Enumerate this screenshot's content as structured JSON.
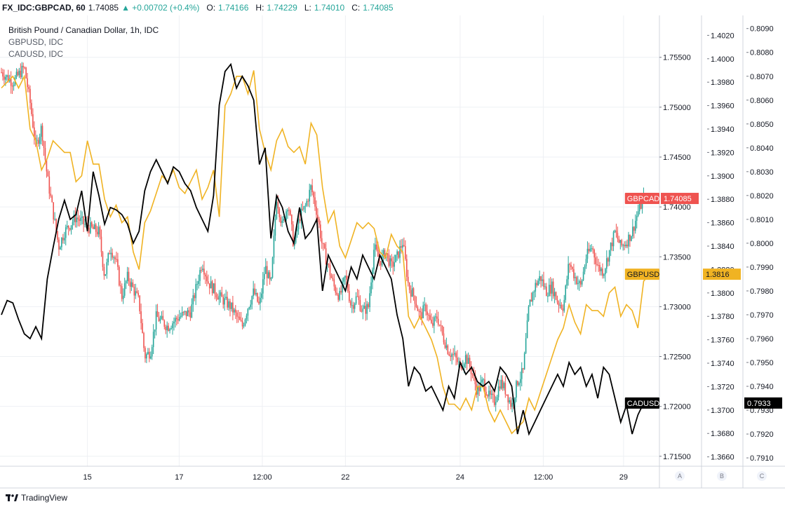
{
  "header": {
    "symbol": "FX_IDC:GBPCAD, 60",
    "last": "1.74085",
    "change": "▲ +0.00702 (+0.4%)",
    "o_label": "O:",
    "o_value": "1.74166",
    "h_label": "H:",
    "h_value": "1.74229",
    "l_label": "L:",
    "l_value": "1.74010",
    "c_label": "C:",
    "c_value": "1.74085"
  },
  "legend": {
    "main": "British Pound / Canadian Dollar, 1h, IDC",
    "s2": "GBPUSD, IDC",
    "s3": "CADUSD, IDC"
  },
  "footer": {
    "brand": "TradingView"
  },
  "axis_buttons": [
    "A",
    "B",
    "C"
  ],
  "chart_data": {
    "type": "line",
    "colors": {
      "up": "#26a69a",
      "down": "#ef5350",
      "gbpusd": "#f0b323",
      "cadusd": "#000000",
      "grid": "#eef0f4"
    },
    "x_ticks": [
      {
        "t": 15,
        "label": "15"
      },
      {
        "t": 31,
        "label": "17"
      },
      {
        "t": 45.5,
        "label": "12:00"
      },
      {
        "t": 60,
        "label": "22"
      },
      {
        "t": 80,
        "label": "24"
      },
      {
        "t": 94.5,
        "label": "12:00"
      },
      {
        "t": 108.5,
        "label": "29"
      }
    ],
    "axes": {
      "A": {
        "ylim": [
          1.714,
          1.7592
        ],
        "ticks": [
          "1.71500",
          "1.72000",
          "1.72500",
          "1.73000",
          "1.73500",
          "1.74000",
          "1.74500",
          "1.75000",
          "1.75500"
        ]
      },
      "B": {
        "ylim": [
          1.3652,
          1.4037
        ],
        "ticks": [
          "1.3660",
          "1.3680",
          "1.3700",
          "1.3720",
          "1.3740",
          "1.3760",
          "1.3780",
          "1.3800",
          "1.3820",
          "1.3840",
          "1.3860",
          "1.3880",
          "1.3900",
          "1.3920",
          "1.3940",
          "1.3960",
          "1.3980",
          "1.4000",
          "1.4020"
        ]
      },
      "C": {
        "ylim": [
          0.79065,
          0.80955
        ],
        "ticks": [
          "0.7910",
          "0.7920",
          "0.7930",
          "0.7940",
          "0.7950",
          "0.7960",
          "0.7970",
          "0.7980",
          "0.7990",
          "0.8000",
          "0.8010",
          "0.8020",
          "0.8030",
          "0.8040",
          "0.8050",
          "0.8060",
          "0.8070",
          "0.8080",
          "0.8090"
        ]
      }
    },
    "gbpcad": [
      [
        0,
        1.7535
      ],
      [
        2,
        1.7525
      ],
      [
        4,
        1.754
      ],
      [
        5,
        1.7505
      ],
      [
        6,
        1.746
      ],
      [
        7,
        1.748
      ],
      [
        8,
        1.743
      ],
      [
        9,
        1.7395
      ],
      [
        10,
        1.736
      ],
      [
        11,
        1.7375
      ],
      [
        13,
        1.739
      ],
      [
        15,
        1.738
      ],
      [
        17,
        1.7375
      ],
      [
        18,
        1.733
      ],
      [
        19,
        1.736
      ],
      [
        20,
        1.7345
      ],
      [
        21,
        1.731
      ],
      [
        22,
        1.733
      ],
      [
        24,
        1.7305
      ],
      [
        25,
        1.725
      ],
      [
        26,
        1.7255
      ],
      [
        27,
        1.729
      ],
      [
        29,
        1.728
      ],
      [
        31,
        1.729
      ],
      [
        33,
        1.7295
      ],
      [
        34,
        1.732
      ],
      [
        35,
        1.7345
      ],
      [
        36,
        1.7325
      ],
      [
        38,
        1.731
      ],
      [
        40,
        1.73
      ],
      [
        42,
        1.728
      ],
      [
        43,
        1.73
      ],
      [
        44,
        1.7315
      ],
      [
        45,
        1.73
      ],
      [
        46,
        1.734
      ],
      [
        47,
        1.732
      ],
      [
        48,
        1.741
      ],
      [
        49,
        1.738
      ],
      [
        50,
        1.7405
      ],
      [
        51,
        1.736
      ],
      [
        52,
        1.739
      ],
      [
        53,
        1.74
      ],
      [
        54,
        1.742
      ],
      [
        55,
        1.7395
      ],
      [
        56,
        1.736
      ],
      [
        57,
        1.734
      ],
      [
        58,
        1.732
      ],
      [
        59,
        1.731
      ],
      [
        60,
        1.733
      ],
      [
        61,
        1.73
      ],
      [
        62,
        1.731
      ],
      [
        63,
        1.7295
      ],
      [
        64,
        1.73
      ],
      [
        65,
        1.736
      ],
      [
        66,
        1.7345
      ],
      [
        67,
        1.7355
      ],
      [
        68,
        1.734
      ],
      [
        69,
        1.735
      ],
      [
        70,
        1.7365
      ],
      [
        71,
        1.732
      ],
      [
        72,
        1.731
      ],
      [
        73,
        1.729
      ],
      [
        74,
        1.73
      ],
      [
        75,
        1.728
      ],
      [
        76,
        1.729
      ],
      [
        77,
        1.727
      ],
      [
        78,
        1.7255
      ],
      [
        79,
        1.725
      ],
      [
        80,
        1.724
      ],
      [
        81,
        1.725
      ],
      [
        82,
        1.7235
      ],
      [
        83,
        1.7215
      ],
      [
        84,
        1.7225
      ],
      [
        85,
        1.721
      ],
      [
        86,
        1.7205
      ],
      [
        87,
        1.7225
      ],
      [
        88,
        1.7215
      ],
      [
        89,
        1.72
      ],
      [
        90,
        1.7225
      ],
      [
        91,
        1.7235
      ],
      [
        92,
        1.73
      ],
      [
        93,
        1.732
      ],
      [
        94,
        1.733
      ],
      [
        95,
        1.7315
      ],
      [
        96,
        1.732
      ],
      [
        97,
        1.7305
      ],
      [
        98,
        1.73
      ],
      [
        99,
        1.7345
      ],
      [
        100,
        1.733
      ],
      [
        101,
        1.732
      ],
      [
        102,
        1.735
      ],
      [
        103,
        1.736
      ],
      [
        104,
        1.734
      ],
      [
        105,
        1.7335
      ],
      [
        106,
        1.7355
      ],
      [
        107,
        1.7375
      ],
      [
        108,
        1.736
      ],
      [
        109,
        1.7365
      ],
      [
        110,
        1.7375
      ],
      [
        111,
        1.7395
      ],
      [
        112,
        1.7408
      ]
    ],
    "gbpusd": [
      [
        0,
        1.3975
      ],
      [
        2,
        1.3985
      ],
      [
        3,
        1.3975
      ],
      [
        4,
        1.3985
      ],
      [
        5,
        1.394
      ],
      [
        6,
        1.393
      ],
      [
        7,
        1.3905
      ],
      [
        8,
        1.3915
      ],
      [
        9,
        1.393
      ],
      [
        11,
        1.392
      ],
      [
        12,
        1.392
      ],
      [
        13,
        1.3895
      ],
      [
        14,
        1.39
      ],
      [
        15,
        1.393
      ],
      [
        16,
        1.391
      ],
      [
        17,
        1.391
      ],
      [
        18,
        1.388
      ],
      [
        19,
        1.3865
      ],
      [
        20,
        1.3875
      ],
      [
        21,
        1.386
      ],
      [
        22,
        1.3865
      ],
      [
        23,
        1.3835
      ],
      [
        24,
        1.382
      ],
      [
        25,
        1.386
      ],
      [
        26,
        1.387
      ],
      [
        27,
        1.3885
      ],
      [
        28,
        1.39
      ],
      [
        29,
        1.3895
      ],
      [
        30,
        1.3905
      ],
      [
        31,
        1.389
      ],
      [
        32,
        1.3885
      ],
      [
        33,
        1.3895
      ],
      [
        34,
        1.3905
      ],
      [
        35,
        1.388
      ],
      [
        36,
        1.389
      ],
      [
        37,
        1.3905
      ],
      [
        38,
        1.3865
      ],
      [
        39,
        1.396
      ],
      [
        40,
        1.397
      ],
      [
        41,
        1.3985
      ],
      [
        42,
        1.3985
      ],
      [
        43,
        1.397
      ],
      [
        44,
        1.399
      ],
      [
        45,
        1.394
      ],
      [
        46,
        1.392
      ],
      [
        47,
        1.3905
      ],
      [
        48,
        1.393
      ],
      [
        49,
        1.394
      ],
      [
        50,
        1.3925
      ],
      [
        51,
        1.392
      ],
      [
        52,
        1.3925
      ],
      [
        53,
        1.391
      ],
      [
        54,
        1.3945
      ],
      [
        55,
        1.3935
      ],
      [
        56,
        1.389
      ],
      [
        57,
        1.386
      ],
      [
        58,
        1.387
      ],
      [
        59,
        1.384
      ],
      [
        60,
        1.383
      ],
      [
        61,
        1.3845
      ],
      [
        62,
        1.386
      ],
      [
        63,
        1.3855
      ],
      [
        64,
        1.386
      ],
      [
        65,
        1.3855
      ],
      [
        66,
        1.3835
      ],
      [
        67,
        1.383
      ],
      [
        68,
        1.385
      ],
      [
        69,
        1.384
      ],
      [
        70,
        1.3835
      ],
      [
        71,
        1.378
      ],
      [
        72,
        1.377
      ],
      [
        73,
        1.378
      ],
      [
        74,
        1.377
      ],
      [
        75,
        1.376
      ],
      [
        76,
        1.3745
      ],
      [
        77,
        1.372
      ],
      [
        78,
        1.3705
      ],
      [
        79,
        1.3705
      ],
      [
        80,
        1.37
      ],
      [
        81,
        1.371
      ],
      [
        82,
        1.37
      ],
      [
        83,
        1.372
      ],
      [
        84,
        1.372
      ],
      [
        85,
        1.37
      ],
      [
        86,
        1.369
      ],
      [
        87,
        1.37
      ],
      [
        88,
        1.369
      ],
      [
        89,
        1.368
      ],
      [
        90,
        1.3685
      ],
      [
        91,
        1.369
      ],
      [
        92,
        1.371
      ],
      [
        93,
        1.37
      ],
      [
        94,
        1.3715
      ],
      [
        95,
        1.373
      ],
      [
        96,
        1.3745
      ],
      [
        97,
        1.376
      ],
      [
        98,
        1.377
      ],
      [
        99,
        1.379
      ],
      [
        100,
        1.3775
      ],
      [
        101,
        1.3765
      ],
      [
        102,
        1.379
      ],
      [
        103,
        1.3785
      ],
      [
        104,
        1.3785
      ],
      [
        105,
        1.378
      ],
      [
        106,
        1.38
      ],
      [
        107,
        1.3805
      ],
      [
        108,
        1.378
      ],
      [
        109,
        1.379
      ],
      [
        110,
        1.3785
      ],
      [
        111,
        1.377
      ],
      [
        112,
        1.381
      ],
      [
        113,
        1.3816
      ]
    ],
    "cadusd": [
      [
        0,
        0.797
      ],
      [
        1,
        0.7976
      ],
      [
        2,
        0.7975
      ],
      [
        3,
        0.7968
      ],
      [
        4,
        0.7962
      ],
      [
        5,
        0.796
      ],
      [
        6,
        0.7965
      ],
      [
        7,
        0.796
      ],
      [
        8,
        0.7985
      ],
      [
        9,
        0.7998
      ],
      [
        10,
        0.801
      ],
      [
        11,
        0.8018
      ],
      [
        12,
        0.801
      ],
      [
        13,
        0.8012
      ],
      [
        14,
        0.8022
      ],
      [
        15,
        0.8005
      ],
      [
        16,
        0.803
      ],
      [
        17,
        0.802
      ],
      [
        18,
        0.8008
      ],
      [
        19,
        0.8015
      ],
      [
        20,
        0.8014
      ],
      [
        21,
        0.8012
      ],
      [
        22,
        0.8008
      ],
      [
        23,
        0.8
      ],
      [
        24,
        0.8005
      ],
      [
        25,
        0.8022
      ],
      [
        26,
        0.803
      ],
      [
        27,
        0.8035
      ],
      [
        28,
        0.803
      ],
      [
        29,
        0.8025
      ],
      [
        30,
        0.8032
      ],
      [
        31,
        0.803
      ],
      [
        32,
        0.8025
      ],
      [
        33,
        0.8022
      ],
      [
        34,
        0.8015
      ],
      [
        35,
        0.801
      ],
      [
        36,
        0.8005
      ],
      [
        37,
        0.802
      ],
      [
        38,
        0.8058
      ],
      [
        39,
        0.8072
      ],
      [
        40,
        0.8075
      ],
      [
        41,
        0.8065
      ],
      [
        42,
        0.807
      ],
      [
        43,
        0.8066
      ],
      [
        44,
        0.806
      ],
      [
        45,
        0.8033
      ],
      [
        46,
        0.804
      ],
      [
        47,
        0.8002
      ],
      [
        48,
        0.802
      ],
      [
        49,
        0.8015
      ],
      [
        50,
        0.8005
      ],
      [
        51,
        0.8
      ],
      [
        52,
        0.8015
      ],
      [
        53,
        0.8002
      ],
      [
        54,
        0.8005
      ],
      [
        55,
        0.801
      ],
      [
        56,
        0.798
      ],
      [
        57,
        0.7995
      ],
      [
        58,
        0.799
      ],
      [
        59,
        0.7985
      ],
      [
        60,
        0.798
      ],
      [
        61,
        0.799
      ],
      [
        62,
        0.7985
      ],
      [
        63,
        0.7995
      ],
      [
        64,
        0.799
      ],
      [
        65,
        0.7985
      ],
      [
        66,
        0.7995
      ],
      [
        67,
        0.799
      ],
      [
        68,
        0.7985
      ],
      [
        69,
        0.797
      ],
      [
        70,
        0.796
      ],
      [
        71,
        0.794
      ],
      [
        72,
        0.7948
      ],
      [
        73,
        0.7945
      ],
      [
        74,
        0.7938
      ],
      [
        75,
        0.794
      ],
      [
        76,
        0.7935
      ],
      [
        77,
        0.793
      ],
      [
        78,
        0.794
      ],
      [
        79,
        0.7935
      ],
      [
        80,
        0.795
      ],
      [
        81,
        0.7945
      ],
      [
        82,
        0.7948
      ],
      [
        83,
        0.7942
      ],
      [
        84,
        0.794
      ],
      [
        85,
        0.7942
      ],
      [
        86,
        0.7938
      ],
      [
        87,
        0.7948
      ],
      [
        88,
        0.7945
      ],
      [
        89,
        0.794
      ],
      [
        90,
        0.792
      ],
      [
        91,
        0.793
      ],
      [
        92,
        0.792
      ],
      [
        93,
        0.7925
      ],
      [
        94,
        0.793
      ],
      [
        95,
        0.7935
      ],
      [
        96,
        0.794
      ],
      [
        97,
        0.7945
      ],
      [
        98,
        0.794
      ],
      [
        99,
        0.795
      ],
      [
        100,
        0.7945
      ],
      [
        101,
        0.7948
      ],
      [
        102,
        0.794
      ],
      [
        103,
        0.7945
      ],
      [
        104,
        0.7935
      ],
      [
        105,
        0.7948
      ],
      [
        106,
        0.7945
      ],
      [
        107,
        0.7935
      ],
      [
        108,
        0.7925
      ],
      [
        109,
        0.7932
      ],
      [
        110,
        0.792
      ],
      [
        111,
        0.7928
      ],
      [
        112,
        0.7933
      ]
    ],
    "price_labels": [
      {
        "text": "GBPCAD",
        "value": "1.74085",
        "axis": "A",
        "v": 1.74085,
        "color": "#ef5350",
        "text_color": "#ffffff"
      },
      {
        "text": "GBPUSD",
        "value": "1.3816",
        "axis": "B",
        "v": 1.3816,
        "color": "#f0b323",
        "text_color": "#131722"
      },
      {
        "text": "CADUSD",
        "value": "0.7933",
        "axis": "C",
        "v": 0.7933,
        "color": "#000000",
        "text_color": "#ffffff"
      }
    ]
  }
}
